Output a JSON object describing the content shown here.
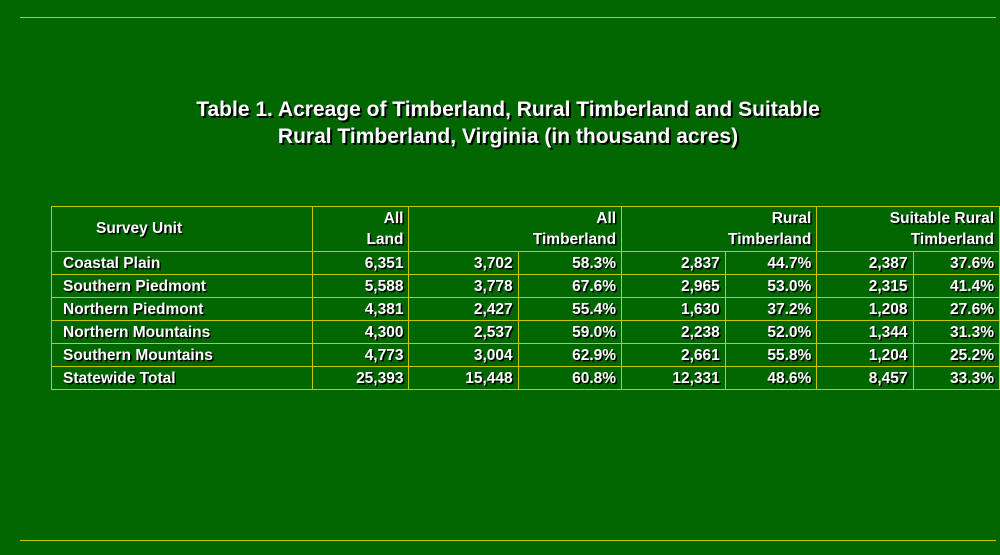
{
  "title": {
    "line1": "Table 1.  Acreage of Timberland, Rural Timberland and Suitable",
    "line2": "Rural Timberland, Virginia (in thousand acres)"
  },
  "headers": {
    "survey_unit": "Survey Unit",
    "all_land_1": "All",
    "all_land_2": "Land",
    "all_timber_1": "All",
    "all_timber_2": "Timberland",
    "rural_1": "Rural",
    "rural_2": "Timberland",
    "suitable_1": "Suitable Rural",
    "suitable_2": "Timberland"
  },
  "rows": [
    {
      "unit": "Coastal Plain",
      "land": "6,351",
      "timber": "3,702",
      "timber_pct": "58.3%",
      "rural": "2,837",
      "rural_pct": "44.7%",
      "suitable": "2,387",
      "suitable_pct": "37.6%"
    },
    {
      "unit": "Southern Piedmont",
      "land": "5,588",
      "timber": "3,778",
      "timber_pct": "67.6%",
      "rural": "2,965",
      "rural_pct": "53.0%",
      "suitable": "2,315",
      "suitable_pct": "41.4%"
    },
    {
      "unit": "Northern Piedmont",
      "land": "4,381",
      "timber": "2,427",
      "timber_pct": "55.4%",
      "rural": "1,630",
      "rural_pct": "37.2%",
      "suitable": "1,208",
      "suitable_pct": "27.6%"
    },
    {
      "unit": "Northern Mountains",
      "land": "4,300",
      "timber": "2,537",
      "timber_pct": "59.0%",
      "rural": "2,238",
      "rural_pct": "52.0%",
      "suitable": "1,344",
      "suitable_pct": "31.3%"
    },
    {
      "unit": "Southern Mountains",
      "land": "4,773",
      "timber": "3,004",
      "timber_pct": "62.9%",
      "rural": "2,661",
      "rural_pct": "55.8%",
      "suitable": "1,204",
      "suitable_pct": "25.2%"
    }
  ],
  "total": {
    "unit": "Statewide Total",
    "land": "25,393",
    "timber": "15,448",
    "timber_pct": "60.8%",
    "rural": "12,331",
    "rural_pct": "48.6%",
    "suitable": "8,457",
    "suitable_pct": "33.3%"
  },
  "colors": {
    "background": "#006600",
    "rule": "#c8c800",
    "text": "#ffffff"
  }
}
